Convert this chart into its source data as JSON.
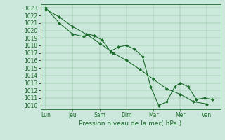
{
  "xlabel": "Pression niveau de la mer( hPa )",
  "ylim": [
    1009.5,
    1023.5
  ],
  "yticks": [
    1010,
    1011,
    1012,
    1013,
    1014,
    1015,
    1016,
    1017,
    1018,
    1019,
    1020,
    1021,
    1022,
    1023
  ],
  "bg_color": "#cce8dc",
  "line_color": "#1a6b2a",
  "xtick_labels": [
    "Lun",
    "Jeu",
    "Sam",
    "Dim",
    "Mar",
    "Mer",
    "Ven"
  ],
  "xtick_positions": [
    0,
    1,
    2,
    3,
    4,
    5,
    6
  ],
  "series1_x": [
    0,
    0.5,
    1.0,
    1.4,
    1.6,
    1.8,
    2.1,
    2.4,
    2.7,
    3.0,
    3.3,
    3.6,
    3.9,
    4.2,
    4.5,
    4.8,
    5.0,
    5.3,
    5.6,
    5.9,
    6.2
  ],
  "series1_y": [
    1023.0,
    1021.0,
    1019.5,
    1019.2,
    1019.5,
    1019.3,
    1018.7,
    1017.2,
    1017.8,
    1018.0,
    1017.5,
    1016.5,
    1012.5,
    1010.0,
    1010.5,
    1012.5,
    1013.0,
    1012.5,
    1010.8,
    1011.0,
    1010.8
  ],
  "series2_x": [
    0,
    0.5,
    1.0,
    1.5,
    2.0,
    2.5,
    3.0,
    3.5,
    4.0,
    4.5,
    5.0,
    5.5,
    6.0
  ],
  "series2_y": [
    1022.8,
    1021.8,
    1020.5,
    1019.5,
    1018.3,
    1017.0,
    1016.0,
    1014.8,
    1013.5,
    1012.2,
    1011.5,
    1010.5,
    1010.2
  ],
  "font_color": "#1a6b2a",
  "xlabel_fontsize": 6.5,
  "tick_fontsize": 5.5,
  "linewidth": 0.8,
  "markersize": 2.0
}
